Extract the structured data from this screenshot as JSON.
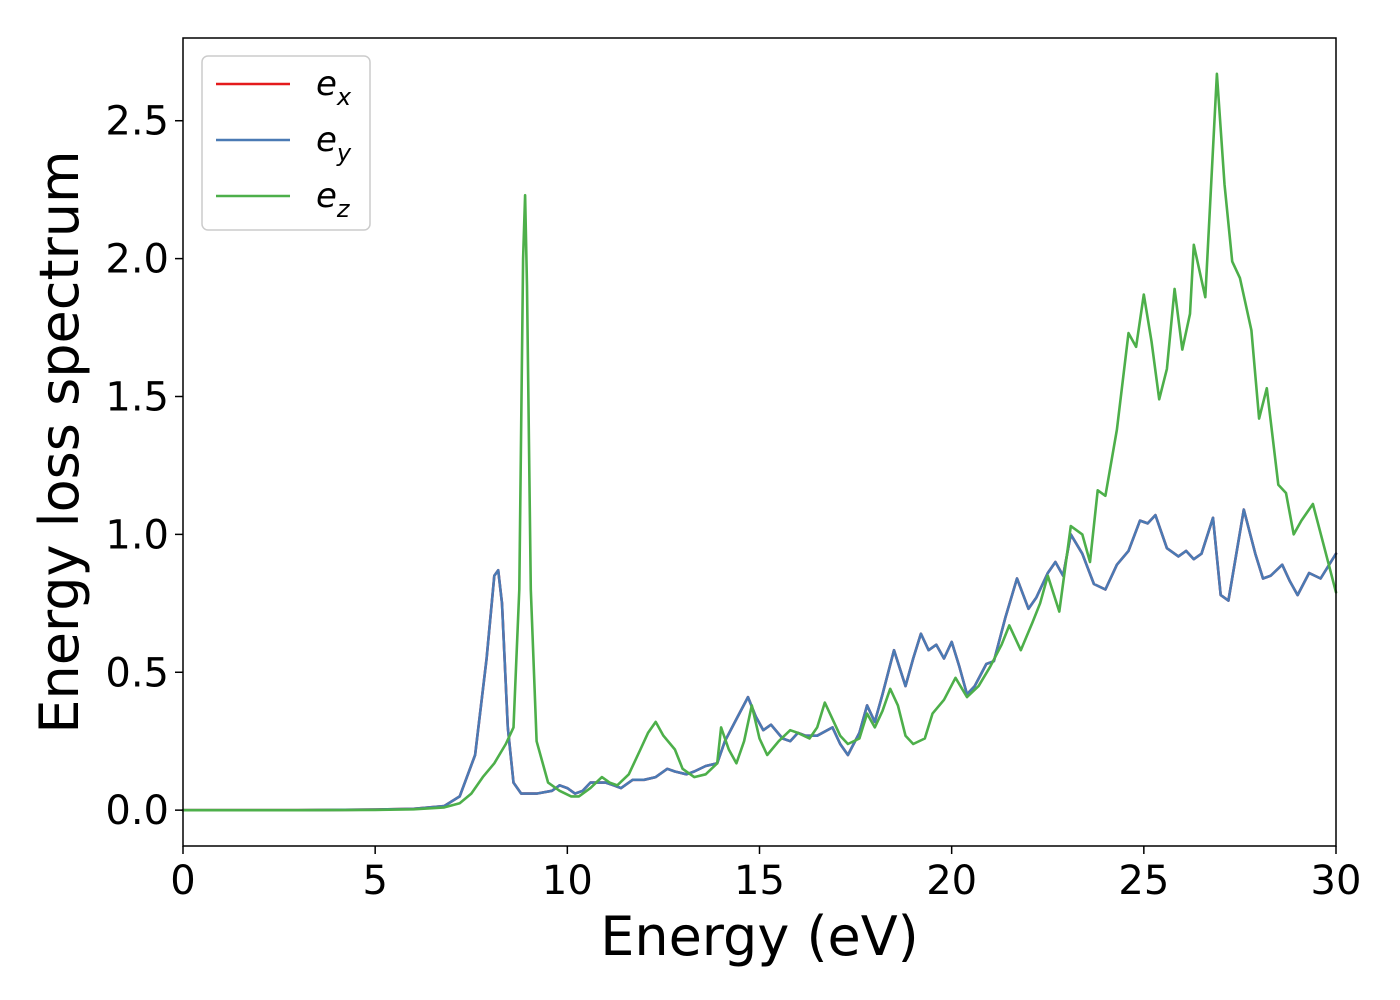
{
  "chart_data": {
    "type": "line",
    "xlabel": "Energy (eV)",
    "ylabel": "Energy loss spectrum",
    "xlim": [
      0,
      30
    ],
    "ylim": [
      -0.13,
      2.8
    ],
    "xticks": [
      0,
      5,
      10,
      15,
      20,
      25,
      30
    ],
    "xtick_labels": [
      "0",
      "5",
      "10",
      "15",
      "20",
      "25",
      "30"
    ],
    "yticks": [
      0.0,
      0.5,
      1.0,
      1.5,
      2.0,
      2.5
    ],
    "ytick_labels": [
      "0.0",
      "0.5",
      "1.0",
      "1.5",
      "2.0",
      "2.5"
    ],
    "grid": false,
    "legend_position": "top-left",
    "series": [
      {
        "name": "e_x",
        "legend_main": "e",
        "legend_sub": "x",
        "color": "#e41a1c",
        "points": [
          [
            0,
            0.0
          ],
          [
            3,
            0.0
          ],
          [
            5,
            0.002
          ],
          [
            6,
            0.005
          ],
          [
            6.8,
            0.015
          ],
          [
            7.2,
            0.05
          ],
          [
            7.6,
            0.2
          ],
          [
            7.9,
            0.55
          ],
          [
            8.1,
            0.85
          ],
          [
            8.2,
            0.87
          ],
          [
            8.3,
            0.75
          ],
          [
            8.45,
            0.3
          ],
          [
            8.6,
            0.1
          ],
          [
            8.8,
            0.06
          ],
          [
            9.2,
            0.06
          ],
          [
            9.6,
            0.07
          ],
          [
            9.8,
            0.09
          ],
          [
            10.0,
            0.08
          ],
          [
            10.2,
            0.06
          ],
          [
            10.4,
            0.07
          ],
          [
            10.6,
            0.1
          ],
          [
            11.0,
            0.1
          ],
          [
            11.2,
            0.09
          ],
          [
            11.4,
            0.08
          ],
          [
            11.7,
            0.11
          ],
          [
            12.0,
            0.11
          ],
          [
            12.3,
            0.12
          ],
          [
            12.6,
            0.15
          ],
          [
            12.8,
            0.14
          ],
          [
            13.1,
            0.13
          ],
          [
            13.3,
            0.14
          ],
          [
            13.6,
            0.16
          ],
          [
            13.9,
            0.17
          ],
          [
            14.1,
            0.25
          ],
          [
            14.4,
            0.33
          ],
          [
            14.7,
            0.41
          ],
          [
            14.9,
            0.34
          ],
          [
            15.1,
            0.29
          ],
          [
            15.3,
            0.31
          ],
          [
            15.6,
            0.26
          ],
          [
            15.8,
            0.25
          ],
          [
            16.0,
            0.28
          ],
          [
            16.2,
            0.27
          ],
          [
            16.5,
            0.27
          ],
          [
            16.9,
            0.3
          ],
          [
            17.1,
            0.24
          ],
          [
            17.3,
            0.2
          ],
          [
            17.6,
            0.28
          ],
          [
            17.8,
            0.38
          ],
          [
            18.0,
            0.32
          ],
          [
            18.2,
            0.42
          ],
          [
            18.5,
            0.58
          ],
          [
            18.8,
            0.45
          ],
          [
            19.0,
            0.55
          ],
          [
            19.2,
            0.64
          ],
          [
            19.4,
            0.58
          ],
          [
            19.6,
            0.6
          ],
          [
            19.8,
            0.55
          ],
          [
            20.0,
            0.61
          ],
          [
            20.2,
            0.52
          ],
          [
            20.4,
            0.42
          ],
          [
            20.6,
            0.45
          ],
          [
            20.9,
            0.53
          ],
          [
            21.1,
            0.54
          ],
          [
            21.4,
            0.7
          ],
          [
            21.7,
            0.84
          ],
          [
            22.0,
            0.73
          ],
          [
            22.2,
            0.77
          ],
          [
            22.5,
            0.86
          ],
          [
            22.7,
            0.9
          ],
          [
            22.9,
            0.85
          ],
          [
            23.1,
            1.0
          ],
          [
            23.4,
            0.93
          ],
          [
            23.7,
            0.82
          ],
          [
            24.0,
            0.8
          ],
          [
            24.3,
            0.89
          ],
          [
            24.6,
            0.94
          ],
          [
            24.9,
            1.05
          ],
          [
            25.1,
            1.04
          ],
          [
            25.3,
            1.07
          ],
          [
            25.6,
            0.95
          ],
          [
            25.9,
            0.92
          ],
          [
            26.1,
            0.94
          ],
          [
            26.3,
            0.91
          ],
          [
            26.5,
            0.93
          ],
          [
            26.8,
            1.06
          ],
          [
            27.0,
            0.78
          ],
          [
            27.2,
            0.76
          ],
          [
            27.6,
            1.09
          ],
          [
            27.9,
            0.93
          ],
          [
            28.1,
            0.84
          ],
          [
            28.3,
            0.85
          ],
          [
            28.6,
            0.89
          ],
          [
            28.8,
            0.83
          ],
          [
            29.0,
            0.78
          ],
          [
            29.3,
            0.86
          ],
          [
            29.6,
            0.84
          ],
          [
            30.0,
            0.93
          ]
        ]
      },
      {
        "name": "e_y",
        "legend_main": "e",
        "legend_sub": "y",
        "color": "#4a7ab4",
        "points": [
          [
            0,
            0.0
          ],
          [
            3,
            0.0
          ],
          [
            5,
            0.002
          ],
          [
            6,
            0.005
          ],
          [
            6.8,
            0.015
          ],
          [
            7.2,
            0.05
          ],
          [
            7.6,
            0.2
          ],
          [
            7.9,
            0.55
          ],
          [
            8.1,
            0.85
          ],
          [
            8.2,
            0.87
          ],
          [
            8.3,
            0.75
          ],
          [
            8.45,
            0.3
          ],
          [
            8.6,
            0.1
          ],
          [
            8.8,
            0.06
          ],
          [
            9.2,
            0.06
          ],
          [
            9.6,
            0.07
          ],
          [
            9.8,
            0.09
          ],
          [
            10.0,
            0.08
          ],
          [
            10.2,
            0.06
          ],
          [
            10.4,
            0.07
          ],
          [
            10.6,
            0.1
          ],
          [
            11.0,
            0.1
          ],
          [
            11.2,
            0.09
          ],
          [
            11.4,
            0.08
          ],
          [
            11.7,
            0.11
          ],
          [
            12.0,
            0.11
          ],
          [
            12.3,
            0.12
          ],
          [
            12.6,
            0.15
          ],
          [
            12.8,
            0.14
          ],
          [
            13.1,
            0.13
          ],
          [
            13.3,
            0.14
          ],
          [
            13.6,
            0.16
          ],
          [
            13.9,
            0.17
          ],
          [
            14.1,
            0.25
          ],
          [
            14.4,
            0.33
          ],
          [
            14.7,
            0.41
          ],
          [
            14.9,
            0.34
          ],
          [
            15.1,
            0.29
          ],
          [
            15.3,
            0.31
          ],
          [
            15.6,
            0.26
          ],
          [
            15.8,
            0.25
          ],
          [
            16.0,
            0.28
          ],
          [
            16.2,
            0.27
          ],
          [
            16.5,
            0.27
          ],
          [
            16.9,
            0.3
          ],
          [
            17.1,
            0.24
          ],
          [
            17.3,
            0.2
          ],
          [
            17.6,
            0.28
          ],
          [
            17.8,
            0.38
          ],
          [
            18.0,
            0.32
          ],
          [
            18.2,
            0.42
          ],
          [
            18.5,
            0.58
          ],
          [
            18.8,
            0.45
          ],
          [
            19.0,
            0.55
          ],
          [
            19.2,
            0.64
          ],
          [
            19.4,
            0.58
          ],
          [
            19.6,
            0.6
          ],
          [
            19.8,
            0.55
          ],
          [
            20.0,
            0.61
          ],
          [
            20.2,
            0.52
          ],
          [
            20.4,
            0.42
          ],
          [
            20.6,
            0.45
          ],
          [
            20.9,
            0.53
          ],
          [
            21.1,
            0.54
          ],
          [
            21.4,
            0.7
          ],
          [
            21.7,
            0.84
          ],
          [
            22.0,
            0.73
          ],
          [
            22.2,
            0.77
          ],
          [
            22.5,
            0.86
          ],
          [
            22.7,
            0.9
          ],
          [
            22.9,
            0.85
          ],
          [
            23.1,
            1.0
          ],
          [
            23.4,
            0.93
          ],
          [
            23.7,
            0.82
          ],
          [
            24.0,
            0.8
          ],
          [
            24.3,
            0.89
          ],
          [
            24.6,
            0.94
          ],
          [
            24.9,
            1.05
          ],
          [
            25.1,
            1.04
          ],
          [
            25.3,
            1.07
          ],
          [
            25.6,
            0.95
          ],
          [
            25.9,
            0.92
          ],
          [
            26.1,
            0.94
          ],
          [
            26.3,
            0.91
          ],
          [
            26.5,
            0.93
          ],
          [
            26.8,
            1.06
          ],
          [
            27.0,
            0.78
          ],
          [
            27.2,
            0.76
          ],
          [
            27.6,
            1.09
          ],
          [
            27.9,
            0.93
          ],
          [
            28.1,
            0.84
          ],
          [
            28.3,
            0.85
          ],
          [
            28.6,
            0.89
          ],
          [
            28.8,
            0.83
          ],
          [
            29.0,
            0.78
          ],
          [
            29.3,
            0.86
          ],
          [
            29.6,
            0.84
          ],
          [
            30.0,
            0.93
          ]
        ]
      },
      {
        "name": "e_z",
        "legend_main": "e",
        "legend_sub": "z",
        "color": "#4daf4a",
        "points": [
          [
            0,
            0.0
          ],
          [
            3,
            0.0
          ],
          [
            5,
            0.001
          ],
          [
            6,
            0.003
          ],
          [
            6.8,
            0.01
          ],
          [
            7.2,
            0.025
          ],
          [
            7.5,
            0.06
          ],
          [
            7.8,
            0.12
          ],
          [
            8.1,
            0.17
          ],
          [
            8.4,
            0.24
          ],
          [
            8.6,
            0.3
          ],
          [
            8.75,
            0.8
          ],
          [
            8.85,
            2.0
          ],
          [
            8.9,
            2.23
          ],
          [
            8.95,
            1.9
          ],
          [
            9.05,
            0.8
          ],
          [
            9.2,
            0.25
          ],
          [
            9.5,
            0.1
          ],
          [
            9.8,
            0.07
          ],
          [
            10.1,
            0.05
          ],
          [
            10.3,
            0.05
          ],
          [
            10.6,
            0.08
          ],
          [
            10.9,
            0.12
          ],
          [
            11.1,
            0.1
          ],
          [
            11.3,
            0.09
          ],
          [
            11.6,
            0.13
          ],
          [
            11.9,
            0.22
          ],
          [
            12.1,
            0.28
          ],
          [
            12.3,
            0.32
          ],
          [
            12.5,
            0.27
          ],
          [
            12.8,
            0.22
          ],
          [
            13.0,
            0.15
          ],
          [
            13.3,
            0.12
          ],
          [
            13.6,
            0.13
          ],
          [
            13.9,
            0.17
          ],
          [
            14.0,
            0.3
          ],
          [
            14.2,
            0.22
          ],
          [
            14.4,
            0.17
          ],
          [
            14.6,
            0.25
          ],
          [
            14.8,
            0.38
          ],
          [
            15.0,
            0.26
          ],
          [
            15.2,
            0.2
          ],
          [
            15.5,
            0.25
          ],
          [
            15.8,
            0.29
          ],
          [
            16.0,
            0.28
          ],
          [
            16.3,
            0.26
          ],
          [
            16.5,
            0.3
          ],
          [
            16.7,
            0.39
          ],
          [
            16.9,
            0.33
          ],
          [
            17.1,
            0.27
          ],
          [
            17.3,
            0.24
          ],
          [
            17.6,
            0.26
          ],
          [
            17.8,
            0.35
          ],
          [
            18.0,
            0.3
          ],
          [
            18.2,
            0.36
          ],
          [
            18.4,
            0.44
          ],
          [
            18.6,
            0.38
          ],
          [
            18.8,
            0.27
          ],
          [
            19.0,
            0.24
          ],
          [
            19.3,
            0.26
          ],
          [
            19.5,
            0.35
          ],
          [
            19.8,
            0.4
          ],
          [
            20.1,
            0.48
          ],
          [
            20.4,
            0.41
          ],
          [
            20.7,
            0.45
          ],
          [
            21.0,
            0.52
          ],
          [
            21.3,
            0.6
          ],
          [
            21.5,
            0.67
          ],
          [
            21.8,
            0.58
          ],
          [
            22.1,
            0.68
          ],
          [
            22.3,
            0.75
          ],
          [
            22.5,
            0.85
          ],
          [
            22.8,
            0.72
          ],
          [
            23.1,
            1.03
          ],
          [
            23.4,
            1.0
          ],
          [
            23.6,
            0.9
          ],
          [
            23.8,
            1.16
          ],
          [
            24.0,
            1.14
          ],
          [
            24.3,
            1.38
          ],
          [
            24.6,
            1.73
          ],
          [
            24.8,
            1.68
          ],
          [
            25.0,
            1.87
          ],
          [
            25.2,
            1.7
          ],
          [
            25.4,
            1.49
          ],
          [
            25.6,
            1.6
          ],
          [
            25.8,
            1.89
          ],
          [
            26.0,
            1.67
          ],
          [
            26.2,
            1.8
          ],
          [
            26.3,
            2.05
          ],
          [
            26.6,
            1.86
          ],
          [
            26.9,
            2.67
          ],
          [
            27.1,
            2.27
          ],
          [
            27.3,
            1.99
          ],
          [
            27.5,
            1.93
          ],
          [
            27.8,
            1.74
          ],
          [
            28.0,
            1.42
          ],
          [
            28.2,
            1.53
          ],
          [
            28.5,
            1.18
          ],
          [
            28.7,
            1.15
          ],
          [
            28.9,
            1.0
          ],
          [
            29.1,
            1.05
          ],
          [
            29.4,
            1.11
          ],
          [
            29.7,
            0.95
          ],
          [
            30.0,
            0.79
          ]
        ]
      }
    ]
  }
}
